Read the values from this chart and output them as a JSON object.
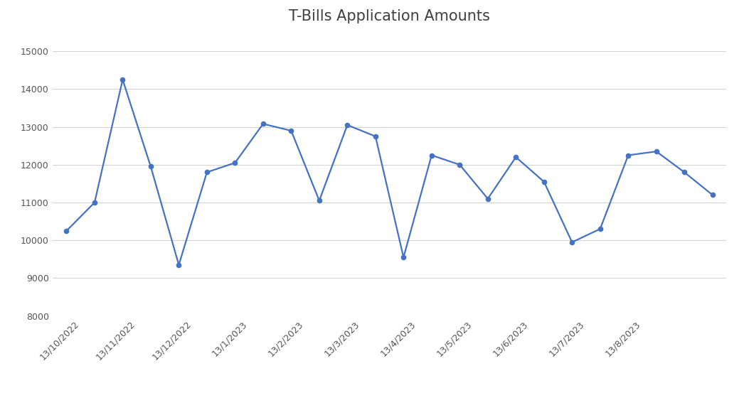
{
  "title": "T-Bills Application Amounts",
  "x_labels": [
    "13/10/2022",
    "13/11/2022",
    "13/12/2022",
    "13/1/2023",
    "13/2/2023",
    "13/3/2023",
    "13/4/2023",
    "13/5/2023",
    "13/6/2023",
    "13/7/2023",
    "13/8/2023"
  ],
  "data_y": [
    10250,
    11000,
    14250,
    11950,
    9350,
    11800,
    12050,
    13080,
    12900,
    11050,
    13050,
    12750,
    9550,
    12250,
    12000,
    11100,
    12200,
    11550,
    9950,
    10300,
    12250,
    12350,
    11800,
    11200
  ],
  "line_color": "#4472c4",
  "marker_color": "#4472c4",
  "background_color": "#ffffff",
  "grid_color": "#d3d3d3",
  "title_fontsize": 15,
  "tick_fontsize": 9,
  "ylim": [
    8000,
    15500
  ],
  "yticks": [
    8000,
    9000,
    10000,
    11000,
    12000,
    13000,
    14000,
    15000
  ]
}
